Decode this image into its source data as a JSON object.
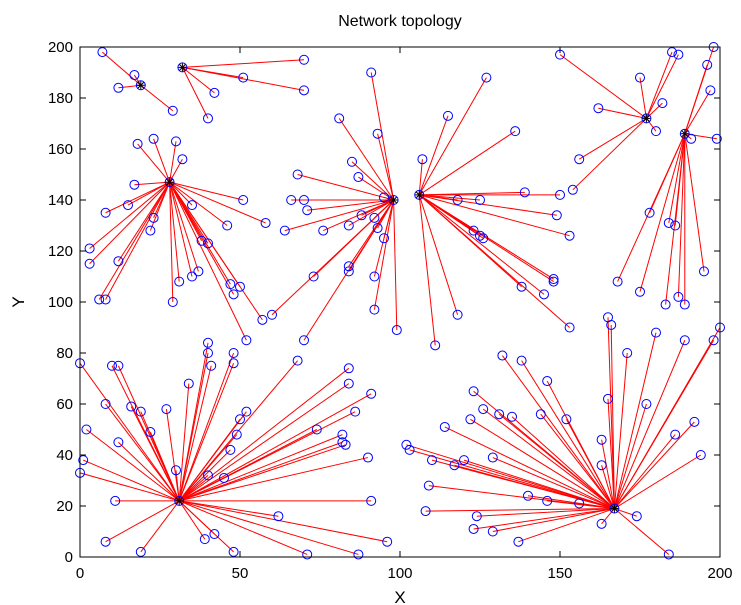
{
  "chart_data": {
    "type": "scatter",
    "title": "Network topology",
    "xlabel": "X",
    "ylabel": "Y",
    "xlim": [
      0,
      200
    ],
    "ylim": [
      0,
      200
    ],
    "xticks": [
      "0",
      "50",
      "100",
      "150",
      "200"
    ],
    "yticks": [
      "0",
      "20",
      "40",
      "60",
      "80",
      "100",
      "120",
      "140",
      "160",
      "180",
      "200"
    ],
    "grid": false,
    "colors": {
      "node": "#0000ff",
      "link": "#ff0000",
      "axis": "#000000"
    },
    "clusters": [
      {
        "head": [
          19,
          185
        ],
        "members": [
          [
            7,
            198
          ],
          [
            17,
            189
          ],
          [
            12,
            184
          ],
          [
            29,
            175
          ]
        ]
      },
      {
        "head": [
          32,
          192
        ],
        "members": [
          [
            70,
            195
          ],
          [
            51,
            188
          ],
          [
            42,
            182
          ],
          [
            40,
            172
          ],
          [
            70,
            183
          ]
        ]
      },
      {
        "head": [
          28,
          147
        ],
        "members": [
          [
            18,
            162
          ],
          [
            23,
            164
          ],
          [
            30,
            163
          ],
          [
            32,
            156
          ],
          [
            17,
            146
          ],
          [
            8,
            135
          ],
          [
            15,
            138
          ],
          [
            23,
            133
          ],
          [
            22,
            128
          ],
          [
            3,
            121
          ],
          [
            3,
            115
          ],
          [
            12,
            116
          ],
          [
            6,
            101
          ],
          [
            8,
            101
          ],
          [
            29,
            100
          ],
          [
            31,
            108
          ],
          [
            35,
            110
          ],
          [
            37,
            112
          ],
          [
            38,
            124
          ],
          [
            40,
            123
          ],
          [
            35,
            138
          ],
          [
            51,
            140
          ],
          [
            46,
            130
          ],
          [
            58,
            131
          ],
          [
            47,
            107
          ],
          [
            48,
            103
          ],
          [
            50,
            106
          ],
          [
            52,
            85
          ],
          [
            57,
            93
          ]
        ]
      },
      {
        "head": [
          98,
          140
        ],
        "members": [
          [
            81,
            172
          ],
          [
            91,
            190
          ],
          [
            93,
            166
          ],
          [
            85,
            155
          ],
          [
            87,
            149
          ],
          [
            68,
            150
          ],
          [
            66,
            140
          ],
          [
            70,
            140
          ],
          [
            71,
            136
          ],
          [
            64,
            128
          ],
          [
            76,
            128
          ],
          [
            84,
            130
          ],
          [
            88,
            134
          ],
          [
            92,
            133
          ],
          [
            93,
            129
          ],
          [
            95,
            125
          ],
          [
            92,
            110
          ],
          [
            95,
            141
          ],
          [
            92,
            97
          ],
          [
            99,
            89
          ],
          [
            84,
            112
          ],
          [
            84,
            114
          ],
          [
            73,
            110
          ],
          [
            70,
            85
          ],
          [
            60,
            95
          ]
        ]
      },
      {
        "head": [
          106,
          142
        ],
        "members": [
          [
            107,
            156
          ],
          [
            115,
            173
          ],
          [
            127,
            188
          ],
          [
            136,
            167
          ],
          [
            139,
            143
          ],
          [
            125,
            140
          ],
          [
            118,
            140
          ],
          [
            123,
            128
          ],
          [
            125,
            126
          ],
          [
            126,
            125
          ],
          [
            138,
            106
          ],
          [
            148,
            109
          ],
          [
            148,
            108
          ],
          [
            145,
            103
          ],
          [
            153,
            90
          ],
          [
            118,
            95
          ],
          [
            111,
            83
          ],
          [
            150,
            142
          ],
          [
            149,
            134
          ],
          [
            153,
            126
          ]
        ]
      },
      {
        "head": [
          177,
          172
        ],
        "members": [
          [
            150,
            197
          ],
          [
            175,
            188
          ],
          [
            185,
            198
          ],
          [
            187,
            197
          ],
          [
            162,
            176
          ],
          [
            182,
            178
          ],
          [
            180,
            167
          ],
          [
            156,
            156
          ],
          [
            154,
            144
          ]
        ]
      },
      {
        "head": [
          189,
          166
        ],
        "members": [
          [
            198,
            200
          ],
          [
            196,
            193
          ],
          [
            197,
            183
          ],
          [
            191,
            164
          ],
          [
            199,
            164
          ],
          [
            178,
            135
          ],
          [
            184,
            131
          ],
          [
            186,
            130
          ],
          [
            195,
            112
          ],
          [
            187,
            102
          ],
          [
            189,
            99
          ],
          [
            183,
            99
          ],
          [
            168,
            108
          ],
          [
            175,
            104
          ]
        ]
      },
      {
        "head": [
          31,
          22
        ],
        "members": [
          [
            0,
            76
          ],
          [
            2,
            50
          ],
          [
            1,
            38
          ],
          [
            0,
            33
          ],
          [
            8,
            60
          ],
          [
            10,
            75
          ],
          [
            12,
            75
          ],
          [
            12,
            45
          ],
          [
            16,
            59
          ],
          [
            19,
            57
          ],
          [
            22,
            49
          ],
          [
            27,
            58
          ],
          [
            30,
            34
          ],
          [
            34,
            68
          ],
          [
            40,
            84
          ],
          [
            40,
            80
          ],
          [
            41,
            75
          ],
          [
            48,
            76
          ],
          [
            48,
            80
          ],
          [
            50,
            54
          ],
          [
            52,
            57
          ],
          [
            49,
            48
          ],
          [
            47,
            42
          ],
          [
            45,
            31
          ],
          [
            40,
            32
          ],
          [
            11,
            22
          ],
          [
            8,
            6
          ],
          [
            19,
            2
          ],
          [
            39,
            7
          ],
          [
            42,
            9
          ],
          [
            48,
            2
          ],
          [
            62,
            16
          ],
          [
            71,
            1
          ],
          [
            87,
            1
          ],
          [
            96,
            6
          ],
          [
            91,
            22
          ],
          [
            90,
            39
          ],
          [
            91,
            64
          ],
          [
            86,
            57
          ],
          [
            84,
            68
          ],
          [
            84,
            74
          ],
          [
            68,
            77
          ],
          [
            74,
            50
          ],
          [
            82,
            48
          ],
          [
            82,
            45
          ],
          [
            83,
            44
          ]
        ]
      },
      {
        "head": [
          167,
          19
        ],
        "members": [
          [
            102,
            44
          ],
          [
            103,
            42
          ],
          [
            110,
            38
          ],
          [
            117,
            36
          ],
          [
            120,
            38
          ],
          [
            114,
            51
          ],
          [
            123,
            65
          ],
          [
            122,
            54
          ],
          [
            126,
            58
          ],
          [
            131,
            56
          ],
          [
            135,
            55
          ],
          [
            129,
            39
          ],
          [
            132,
            79
          ],
          [
            138,
            77
          ],
          [
            146,
            69
          ],
          [
            144,
            56
          ],
          [
            152,
            54
          ],
          [
            163,
            46
          ],
          [
            163,
            36
          ],
          [
            165,
            62
          ],
          [
            171,
            80
          ],
          [
            177,
            60
          ],
          [
            180,
            88
          ],
          [
            189,
            85
          ],
          [
            192,
            53
          ],
          [
            186,
            48
          ],
          [
            194,
            40
          ],
          [
            198,
            85
          ],
          [
            200,
            90
          ],
          [
            165,
            94
          ],
          [
            166,
            91
          ],
          [
            109,
            28
          ],
          [
            108,
            18
          ],
          [
            124,
            16
          ],
          [
            123,
            11
          ],
          [
            129,
            10
          ],
          [
            137,
            6
          ],
          [
            140,
            24
          ],
          [
            146,
            22
          ],
          [
            156,
            21
          ],
          [
            163,
            13
          ],
          [
            174,
            16
          ],
          [
            184,
            1
          ]
        ]
      }
    ]
  }
}
